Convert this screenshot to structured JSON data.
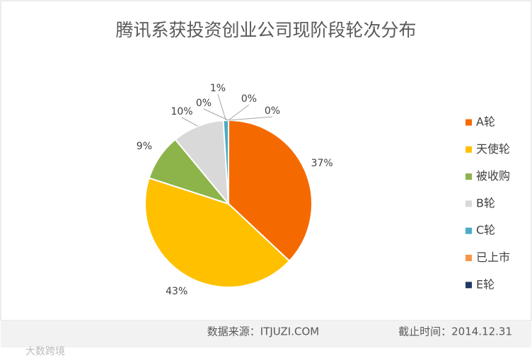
{
  "chart_data": {
    "type": "pie",
    "title": "腾讯系获投资创业公司现阶段轮次分布",
    "categories": [
      "A轮",
      "天使轮",
      "被收购",
      "B轮",
      "C轮",
      "已上市",
      "E轮",
      null
    ],
    "values": [
      37,
      43,
      9,
      10,
      1,
      0,
      0,
      0
    ],
    "value_labels": [
      "37%",
      "43%",
      "9%",
      "10%",
      "1%",
      "0%",
      "0%",
      "0%"
    ],
    "colors": [
      "#f56a00",
      "#ffc000",
      "#8db44a",
      "#d9d9d9",
      "#4bacc6",
      "#f79646",
      "#1f3864",
      "#7f7f7f"
    ],
    "legend": "right"
  },
  "footer": {
    "source": "数据来源：ITJUZI.COM",
    "date": "截止时间：2014.12.31",
    "watermark": "大数跨境"
  }
}
